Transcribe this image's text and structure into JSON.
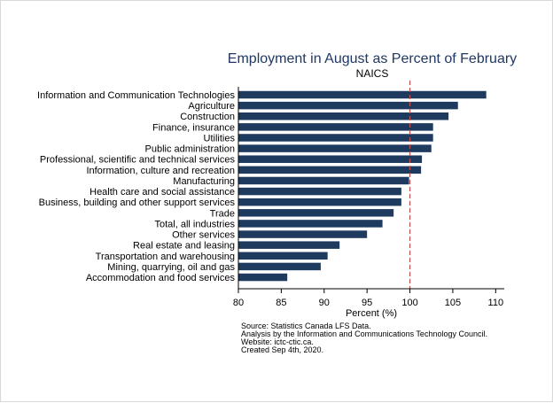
{
  "chart_data": {
    "type": "bar",
    "orientation": "horizontal",
    "title": "Employment in August as Percent of February",
    "subtitle": "NAICS",
    "xlabel": "Percent (%)",
    "ylabel": "",
    "xlim": [
      80,
      111
    ],
    "xticks": [
      80,
      85,
      90,
      95,
      100,
      105,
      110
    ],
    "reference_line": 100,
    "bar_color": "#1f3a5f",
    "reference_color": "#c0504d",
    "categories": [
      "Information and Communication Technologies",
      "Agriculture",
      "Construction",
      "Finance, insurance",
      "Utilities",
      "Public administration",
      "Professional, scientific and technical services",
      "Information, culture and recreation",
      "Manufacturing",
      "Health care and social assistance",
      "Business, building and other support services",
      "Trade",
      "Total, all industries",
      "Other services",
      "Real estate and leasing",
      "Transportation and warehousing",
      "Mining, quarrying, oil and gas",
      "Accommodation and food services"
    ],
    "values": [
      108.9,
      105.6,
      104.5,
      102.7,
      102.7,
      102.5,
      101.4,
      101.3,
      99.9,
      99.0,
      99.0,
      98.1,
      96.8,
      95.0,
      91.8,
      90.4,
      89.6,
      85.7
    ],
    "notes": [
      "Source: Statistics Canada LFS Data.",
      "Analysis by the Information and Communications Technology Council.",
      "Website: ictc-ctic.ca.",
      "Created Sep 4th, 2020."
    ]
  }
}
